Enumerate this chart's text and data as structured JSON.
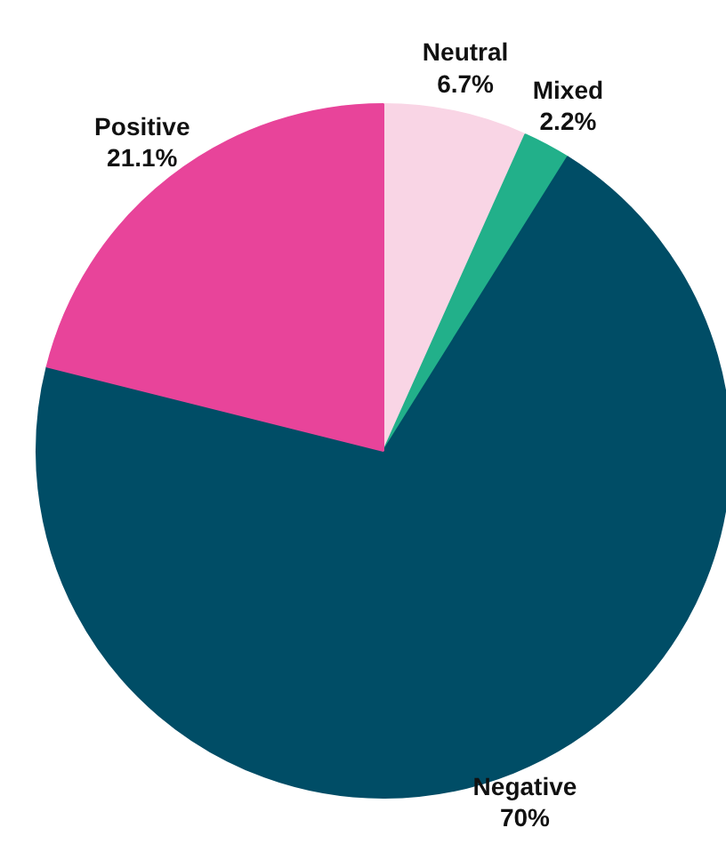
{
  "chart_data": {
    "type": "pie",
    "categories": [
      "Neutral",
      "Mixed",
      "Negative",
      "Positive"
    ],
    "values": [
      6.7,
      2.2,
      70,
      21.1
    ],
    "colors": [
      "#f9d5e5",
      "#22b08a",
      "#004d66",
      "#e8449a"
    ],
    "value_labels": [
      "6.7%",
      "2.2%",
      "70%",
      "21.1%"
    ]
  }
}
